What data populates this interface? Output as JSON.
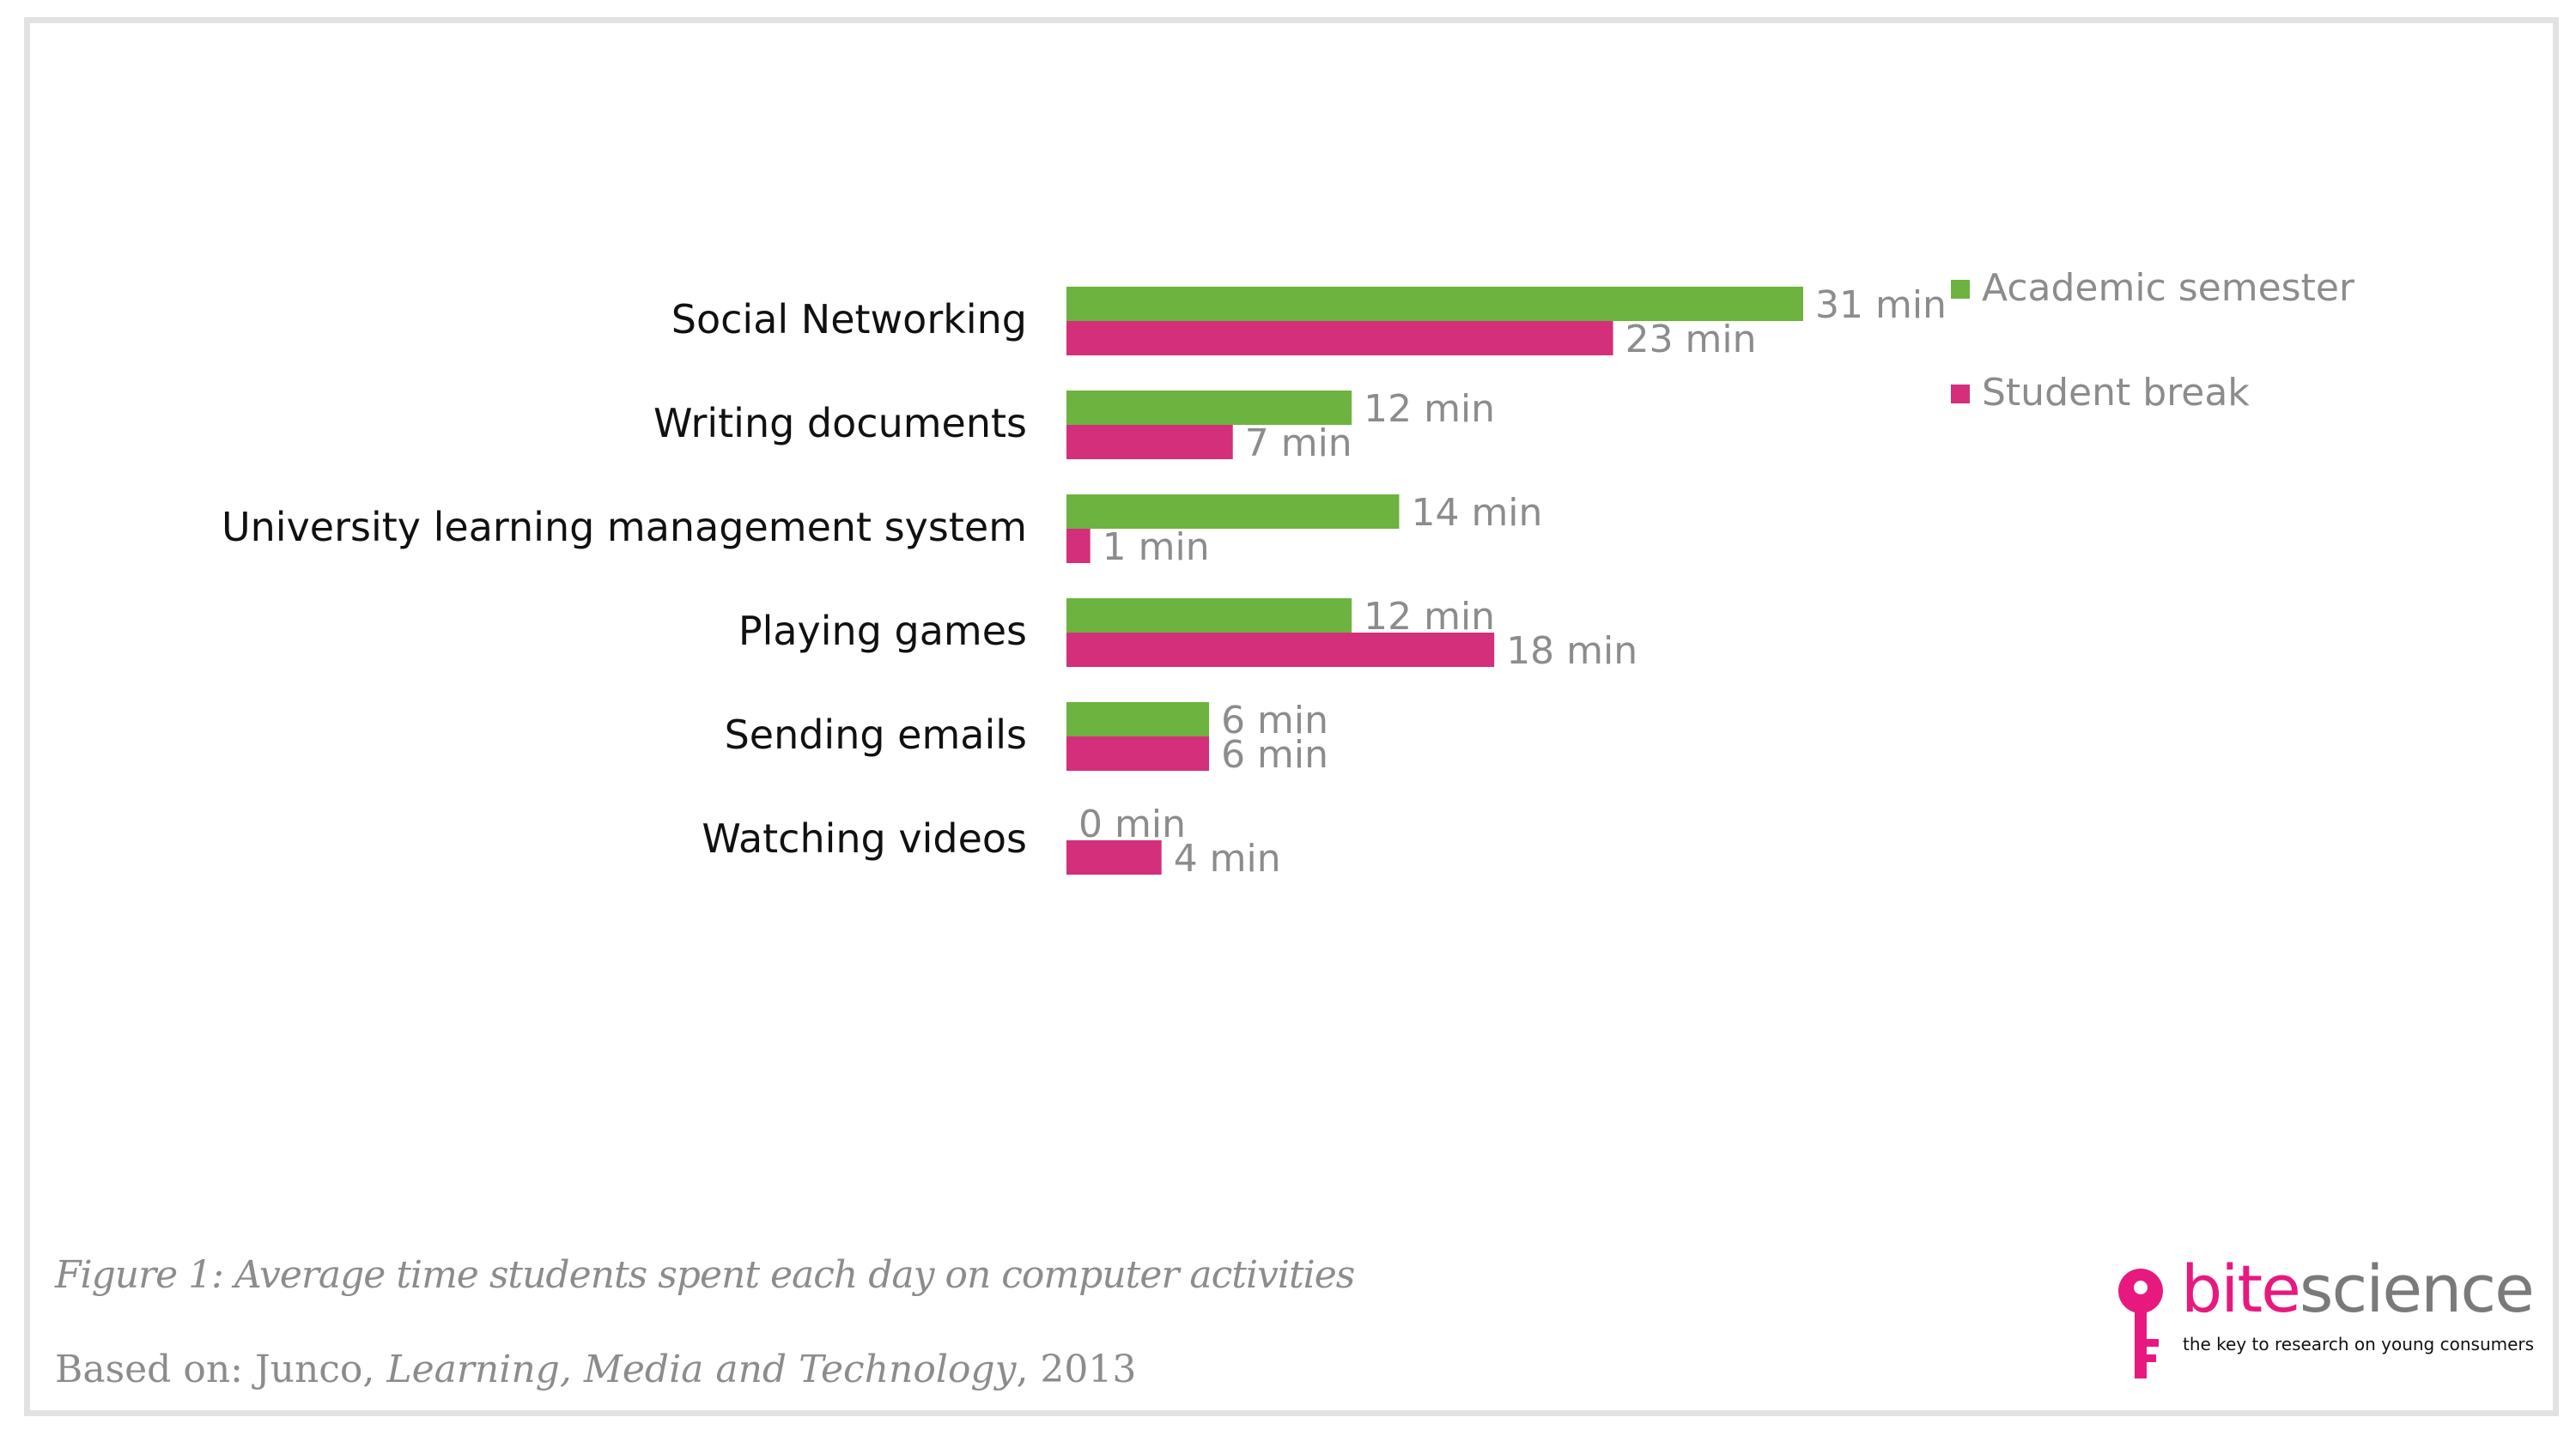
{
  "chart_data": {
    "type": "bar",
    "orientation": "horizontal",
    "categories": [
      "Social Networking",
      "Writing documents",
      "University learning management system",
      "Playing games",
      "Sending emails",
      "Watching videos"
    ],
    "series": [
      {
        "name": "Academic semester",
        "color": "#6db33f",
        "values": [
          31,
          12,
          14,
          12,
          6,
          0
        ],
        "labels": [
          "31 min",
          "12 min",
          "14 min",
          "12 min",
          "6 min",
          "0 min"
        ]
      },
      {
        "name": "Student break",
        "color": "#d32f7a",
        "values": [
          23,
          7,
          1,
          18,
          6,
          4
        ],
        "labels": [
          "23 min",
          "7 min",
          "1 min",
          "18 min",
          "6 min",
          "4 min"
        ]
      }
    ],
    "xlim": [
      0,
      31
    ],
    "grid": false,
    "legend_position": "top-right"
  },
  "caption": "Figure 1: Average  time students spent each day on computer activities",
  "source": {
    "prefix": "Based on: Junco, ",
    "journal": "Learning, Media and Technology",
    "suffix": ", 2013"
  },
  "logo": {
    "word_part1": "bite",
    "word_part2": "science",
    "tagline": "the key to research on young consumers",
    "icon": "key-icon",
    "color": "#e8197e"
  }
}
